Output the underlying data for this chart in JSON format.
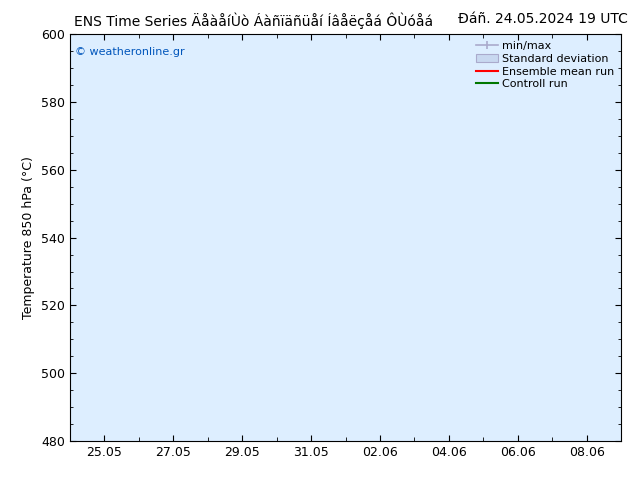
{
  "title_left": "ENS Time Series ÄåàåíÙò Áàñïäñüåí Íâåëçåá ÔÙóåá",
  "title_right": "Ðáñ. 24.05.2024 19 UTC",
  "ylabel": "Temperature 850 hPa (°C)",
  "watermark": "© weatheronline.gr",
  "ylim": [
    480,
    600
  ],
  "yticks": [
    480,
    500,
    520,
    540,
    560,
    580,
    600
  ],
  "xlabel_dates": [
    "25.05",
    "27.05",
    "29.05",
    "31.05",
    "02.06",
    "04.06",
    "06.06",
    "08.06"
  ],
  "shade_color": "#ddeeff",
  "bg_color": "#ffffff",
  "legend_labels": [
    "min/max",
    "Standard deviation",
    "Ensemble mean run",
    "Controll run"
  ],
  "legend_colors": [
    "#aaaacc",
    "#c8d8f0",
    "#ff0000",
    "#007700"
  ],
  "title_fontsize": 10,
  "tick_fontsize": 9,
  "legend_fontsize": 8,
  "ylabel_fontsize": 9,
  "watermark_color": "#0055bb",
  "border_color": "#000000",
  "tick_color": "#000000"
}
